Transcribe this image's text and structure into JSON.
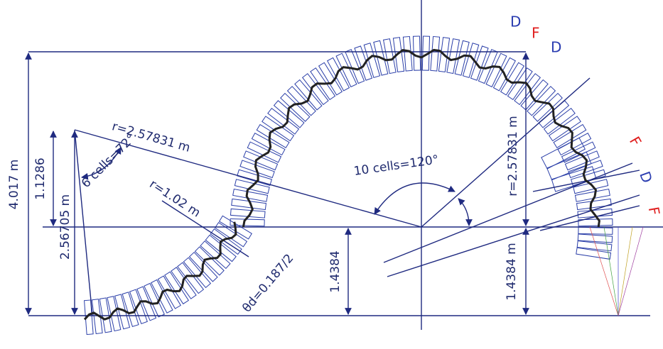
{
  "magnets_top": [
    "D",
    "F",
    "D"
  ],
  "magnets_right": [
    "F",
    "D",
    "F"
  ],
  "labels": {
    "r_outer_left": "r=2.57831 m",
    "angle_left": "6 cells=72°",
    "r_inner": "r=1.02 m",
    "angle_center": "10 cells=120°",
    "r_outer_right": "r=2.57831 m",
    "height_total": "4.017 m",
    "height_upper_left": "1.1286",
    "height_left": "2.56705 m",
    "height_lower_mid": "1.4384",
    "height_lower_right": "1.4384 m",
    "theta": "θd=0.187/2"
  }
}
